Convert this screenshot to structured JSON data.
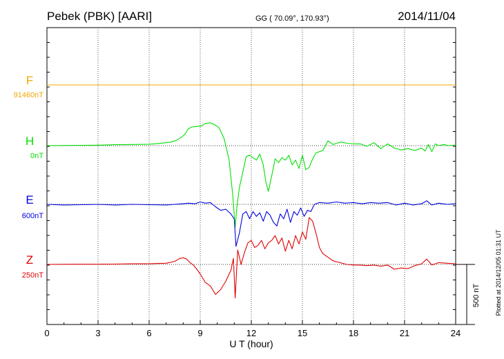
{
  "header": {
    "station": "Pebek (PBK)  [AARI]",
    "coords": "GG ( 70.09°, 170.93°)",
    "date": "2014/11/04"
  },
  "chart_data": {
    "type": "line",
    "xlabel": "U T (hour)",
    "xlim": [
      0,
      24
    ],
    "xticks": [
      0,
      3,
      6,
      9,
      12,
      15,
      18,
      21,
      24
    ],
    "scale_bar": "500 nT",
    "plotted_note": "Plotted at 2014/12/05 01:31  UT",
    "grid": true,
    "series": [
      {
        "name": "F",
        "baseline_label": "91460nT",
        "color": "#f0a800",
        "x": [
          0,
          24
        ],
        "y": [
          0,
          0
        ]
      },
      {
        "name": "H",
        "baseline_label": "0nT",
        "color": "#00e000",
        "x": [
          0,
          1,
          2,
          3,
          4,
          5,
          6,
          6.5,
          7,
          7.3,
          7.6,
          7.9,
          8.1,
          8.3,
          8.5,
          8.8,
          9.1,
          9.3,
          9.6,
          9.9,
          10.1,
          10.4,
          10.7,
          10.9,
          11.05,
          11.15,
          11.3,
          11.5,
          11.7,
          11.9,
          12.1,
          12.3,
          12.5,
          12.7,
          12.85,
          13.0,
          13.2,
          13.4,
          13.6,
          13.8,
          14.0,
          14.2,
          14.4,
          14.6,
          14.8,
          15.0,
          15.2,
          15.4,
          15.6,
          15.8,
          16.0,
          16.2,
          16.5,
          16.8,
          17.0,
          17.3,
          17.6,
          18.0,
          18.4,
          18.8,
          19.2,
          19.6,
          20.0,
          20.4,
          20.8,
          21.2,
          21.6,
          22.0,
          22.2,
          22.4,
          22.6,
          22.8,
          23.0,
          23.3,
          23.6,
          24.0
        ],
        "y": [
          0,
          2,
          3,
          4,
          8,
          10,
          12,
          18,
          25,
          30,
          45,
          70,
          95,
          140,
          155,
          160,
          165,
          185,
          190,
          170,
          150,
          60,
          -120,
          -400,
          -680,
          -520,
          -350,
          -220,
          -90,
          -80,
          -100,
          -120,
          -70,
          -160,
          -300,
          -380,
          -250,
          -110,
          -140,
          -100,
          -120,
          -80,
          -160,
          -120,
          -190,
          -80,
          -200,
          -180,
          -110,
          -60,
          -50,
          -40,
          40,
          10,
          20,
          30,
          20,
          15,
          15,
          -5,
          25,
          -25,
          15,
          -20,
          -35,
          -25,
          -40,
          -20,
          -45,
          10,
          -50,
          15,
          0,
          10,
          0,
          5
        ]
      },
      {
        "name": "E",
        "baseline_label": "600nT",
        "color": "#0000dd",
        "x": [
          0,
          1,
          2,
          3,
          4,
          5,
          6,
          7,
          7.5,
          8,
          8.3,
          8.7,
          9.0,
          9.3,
          9.6,
          9.9,
          10.2,
          10.5,
          10.8,
          11.0,
          11.1,
          11.3,
          11.5,
          11.7,
          11.9,
          12.1,
          12.3,
          12.5,
          12.7,
          12.9,
          13.1,
          13.3,
          13.5,
          13.7,
          13.9,
          14.1,
          14.3,
          14.5,
          14.7,
          14.9,
          15.1,
          15.3,
          15.5,
          15.7,
          16.0,
          16.5,
          17.0,
          17.5,
          18.0,
          18.5,
          19.0,
          19.5,
          20.0,
          20.5,
          21.0,
          21.5,
          22.0,
          22.3,
          22.6,
          23.0,
          23.5,
          24.0
        ],
        "y": [
          0,
          -5,
          -3,
          0,
          -5,
          0,
          -3,
          -5,
          0,
          5,
          10,
          5,
          20,
          10,
          15,
          -20,
          -50,
          -40,
          -80,
          -120,
          -350,
          -240,
          -80,
          -60,
          -120,
          -60,
          -100,
          -70,
          -140,
          -60,
          -90,
          -150,
          -180,
          -80,
          -120,
          -40,
          -150,
          -60,
          -90,
          -30,
          -100,
          -50,
          -60,
          0,
          15,
          10,
          20,
          10,
          15,
          5,
          15,
          10,
          15,
          -5,
          10,
          -5,
          5,
          30,
          -5,
          10,
          0,
          5
        ]
      },
      {
        "name": "Z",
        "baseline_label": "250nT",
        "color": "#e00000",
        "x": [
          0,
          1,
          2,
          3,
          4,
          5,
          6,
          6.5,
          7,
          7.5,
          7.8,
          8.0,
          8.2,
          8.4,
          8.6,
          8.8,
          9.0,
          9.3,
          9.6,
          9.9,
          10.2,
          10.5,
          10.8,
          10.95,
          11.05,
          11.2,
          11.4,
          11.6,
          11.8,
          12.0,
          12.2,
          12.4,
          12.6,
          12.8,
          13.0,
          13.2,
          13.4,
          13.6,
          13.8,
          14.0,
          14.2,
          14.4,
          14.6,
          14.8,
          15.0,
          15.2,
          15.4,
          15.6,
          15.8,
          16.0,
          16.2,
          16.5,
          16.8,
          17.2,
          17.6,
          18.0,
          18.4,
          18.8,
          19.2,
          19.6,
          20.0,
          20.4,
          20.8,
          21.2,
          21.6,
          22.0,
          22.3,
          22.6,
          23.0,
          23.5,
          24.0
        ],
        "y": [
          0,
          1,
          2,
          2,
          3,
          5,
          5,
          8,
          10,
          25,
          50,
          55,
          45,
          15,
          -5,
          -40,
          -80,
          -150,
          -180,
          -250,
          -210,
          -140,
          -50,
          50,
          -280,
          120,
          0,
          100,
          180,
          200,
          140,
          160,
          200,
          130,
          180,
          200,
          240,
          170,
          220,
          110,
          200,
          130,
          240,
          170,
          270,
          210,
          390,
          360,
          260,
          140,
          90,
          60,
          30,
          15,
          0,
          -5,
          -5,
          -10,
          -5,
          -15,
          -5,
          -40,
          -30,
          -35,
          -10,
          5,
          45,
          -5,
          15,
          10,
          5
        ]
      }
    ]
  }
}
